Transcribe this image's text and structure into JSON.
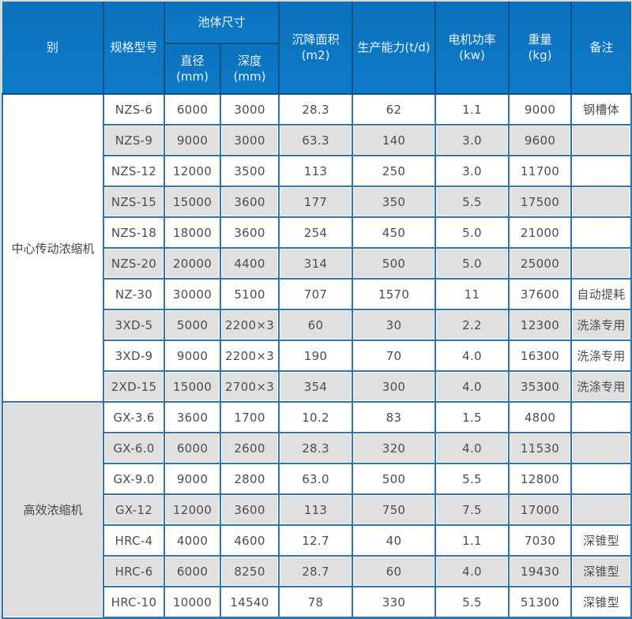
{
  "chart_data": {
    "type": "table",
    "header": {
      "category": "别",
      "model": "规格型号",
      "pool_size": "池体尺寸",
      "diameter": "直径\n(mm)",
      "depth": "深度(mm)",
      "area": "沉降面积\n(m2)",
      "capacity": "生产能力(t/d)",
      "power": "电机功率\n(kw)",
      "weight": "重量\n(kg)",
      "remark": "备注"
    },
    "groups": [
      {
        "category": "中心传动浓缩机",
        "rows": [
          {
            "model": "NZS-6",
            "diameter": "6000",
            "depth": "3000",
            "area": "28.3",
            "capacity": "62",
            "power": "1.1",
            "weight": "9000",
            "remark": "钢槽体"
          },
          {
            "model": "NZS-9",
            "diameter": "9000",
            "depth": "3000",
            "area": "63.3",
            "capacity": "140",
            "power": "3.0",
            "weight": "9600",
            "remark": ""
          },
          {
            "model": "NZS-12",
            "diameter": "12000",
            "depth": "3500",
            "area": "113",
            "capacity": "250",
            "power": "3.0",
            "weight": "11700",
            "remark": ""
          },
          {
            "model": "NZS-15",
            "diameter": "15000",
            "depth": "3600",
            "area": "177",
            "capacity": "350",
            "power": "5.5",
            "weight": "17500",
            "remark": ""
          },
          {
            "model": "NZS-18",
            "diameter": "18000",
            "depth": "3600",
            "area": "254",
            "capacity": "450",
            "power": "5.0",
            "weight": "21000",
            "remark": ""
          },
          {
            "model": "NZS-20",
            "diameter": "20000",
            "depth": "4400",
            "area": "314",
            "capacity": "500",
            "power": "5.0",
            "weight": "25000",
            "remark": ""
          },
          {
            "model": "NZ-30",
            "diameter": "30000",
            "depth": "5100",
            "area": "707",
            "capacity": "1570",
            "power": "11",
            "weight": "37600",
            "remark": "自动提耗"
          },
          {
            "model": "3XD-5",
            "diameter": "5000",
            "depth": "2200×3",
            "area": "60",
            "capacity": "30",
            "power": "2.2",
            "weight": "12300",
            "remark": "洗涤专用"
          },
          {
            "model": "3XD-9",
            "diameter": "9000",
            "depth": "2200×3",
            "area": "190",
            "capacity": "70",
            "power": "4.0",
            "weight": "16300",
            "remark": "洗涤专用"
          },
          {
            "model": "2XD-15",
            "diameter": "15000",
            "depth": "2700×3",
            "area": "354",
            "capacity": "300",
            "power": "4.0",
            "weight": "35300",
            "remark": "洗涤专用"
          }
        ]
      },
      {
        "category": "高效浓缩机",
        "rows": [
          {
            "model": "GX-3.6",
            "diameter": "3600",
            "depth": "1700",
            "area": "10.2",
            "capacity": "83",
            "power": "1.5",
            "weight": "4800",
            "remark": ""
          },
          {
            "model": "GX-6.0",
            "diameter": "6000",
            "depth": "2600",
            "area": "28.3",
            "capacity": "320",
            "power": "4.0",
            "weight": "11530",
            "remark": ""
          },
          {
            "model": "GX-9.0",
            "diameter": "9000",
            "depth": "2800",
            "area": "63.0",
            "capacity": "500",
            "power": "5.5",
            "weight": "12800",
            "remark": ""
          },
          {
            "model": "GX-12",
            "diameter": "12000",
            "depth": "3600",
            "area": "113",
            "capacity": "750",
            "power": "7.5",
            "weight": "17000",
            "remark": ""
          },
          {
            "model": "HRC-4",
            "diameter": "4000",
            "depth": "4600",
            "area": "12.7",
            "capacity": "40",
            "power": "1.1",
            "weight": "7030",
            "remark": "深锥型"
          },
          {
            "model": "HRC-6",
            "diameter": "6000",
            "depth": "8250",
            "area": "28.7",
            "capacity": "60",
            "power": "4.0",
            "weight": "19430",
            "remark": "深锥型"
          },
          {
            "model": "HRC-10",
            "diameter": "10000",
            "depth": "14540",
            "area": "78",
            "capacity": "330",
            "power": "5.5",
            "weight": "51300",
            "remark": "深锥型"
          }
        ]
      }
    ],
    "colors": {
      "header_bg": "#0d76c1",
      "header_divider": "#0a5186",
      "header_text": "#e9f4fc",
      "grid_border": "#3273ad",
      "row_bg": "#ffffff",
      "alt_row_bg": "#e0e0e0",
      "category_alt_bg": "#dedede",
      "cell_text": "#4d4d4d",
      "page_bg": "#d9d9d9"
    }
  }
}
